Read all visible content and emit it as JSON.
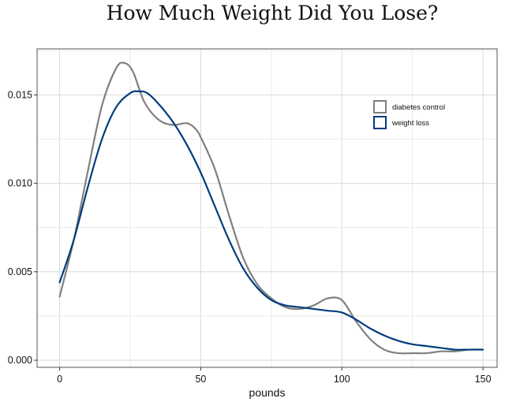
{
  "chart_data": {
    "type": "line",
    "title": "How Much Weight Did You Lose?",
    "xlabel": "pounds",
    "ylabel": "",
    "xlim": [
      -8,
      155
    ],
    "ylim": [
      -0.0004,
      0.0176
    ],
    "x_ticks": [
      0,
      50,
      100,
      150
    ],
    "y_ticks": [
      0.0,
      0.005,
      0.01,
      0.015
    ],
    "x_tick_labels": [
      "0",
      "50",
      "100",
      "150"
    ],
    "y_tick_labels": [
      "0.000",
      "0.005",
      "0.010",
      "0.015"
    ],
    "grid": true,
    "legend_position": "top-right",
    "series": [
      {
        "name": "diabetes control",
        "color": "#808080",
        "x": [
          0,
          5,
          10,
          15,
          20,
          23,
          26,
          30,
          35,
          40,
          45,
          48,
          50,
          55,
          60,
          65,
          70,
          75,
          80,
          85,
          90,
          95,
          100,
          105,
          110,
          115,
          120,
          125,
          130,
          135,
          140,
          145,
          150
        ],
        "y": [
          0.0036,
          0.0068,
          0.0107,
          0.0144,
          0.0165,
          0.0168,
          0.0163,
          0.0146,
          0.0136,
          0.0133,
          0.0134,
          0.0131,
          0.0126,
          0.0108,
          0.0082,
          0.0058,
          0.0043,
          0.0035,
          0.003,
          0.0029,
          0.0031,
          0.0035,
          0.0034,
          0.0022,
          0.0012,
          0.0006,
          0.0004,
          0.0004,
          0.0004,
          0.0005,
          0.0005,
          0.0006,
          0.0006
        ]
      },
      {
        "name": "weight loss",
        "color": "#003c7d",
        "x": [
          0,
          5,
          10,
          15,
          20,
          25,
          28,
          31,
          35,
          40,
          45,
          50,
          55,
          60,
          65,
          70,
          75,
          80,
          85,
          90,
          95,
          100,
          105,
          110,
          115,
          120,
          125,
          130,
          135,
          140,
          145,
          150
        ],
        "y": [
          0.0044,
          0.0068,
          0.0098,
          0.0125,
          0.0143,
          0.0151,
          0.0152,
          0.0151,
          0.0145,
          0.0135,
          0.0122,
          0.0106,
          0.0087,
          0.0068,
          0.0052,
          0.0041,
          0.0034,
          0.0031,
          0.003,
          0.0029,
          0.0028,
          0.0027,
          0.0023,
          0.0018,
          0.0014,
          0.0011,
          0.0009,
          0.0008,
          0.0007,
          0.0006,
          0.0006,
          0.0006
        ]
      }
    ]
  }
}
